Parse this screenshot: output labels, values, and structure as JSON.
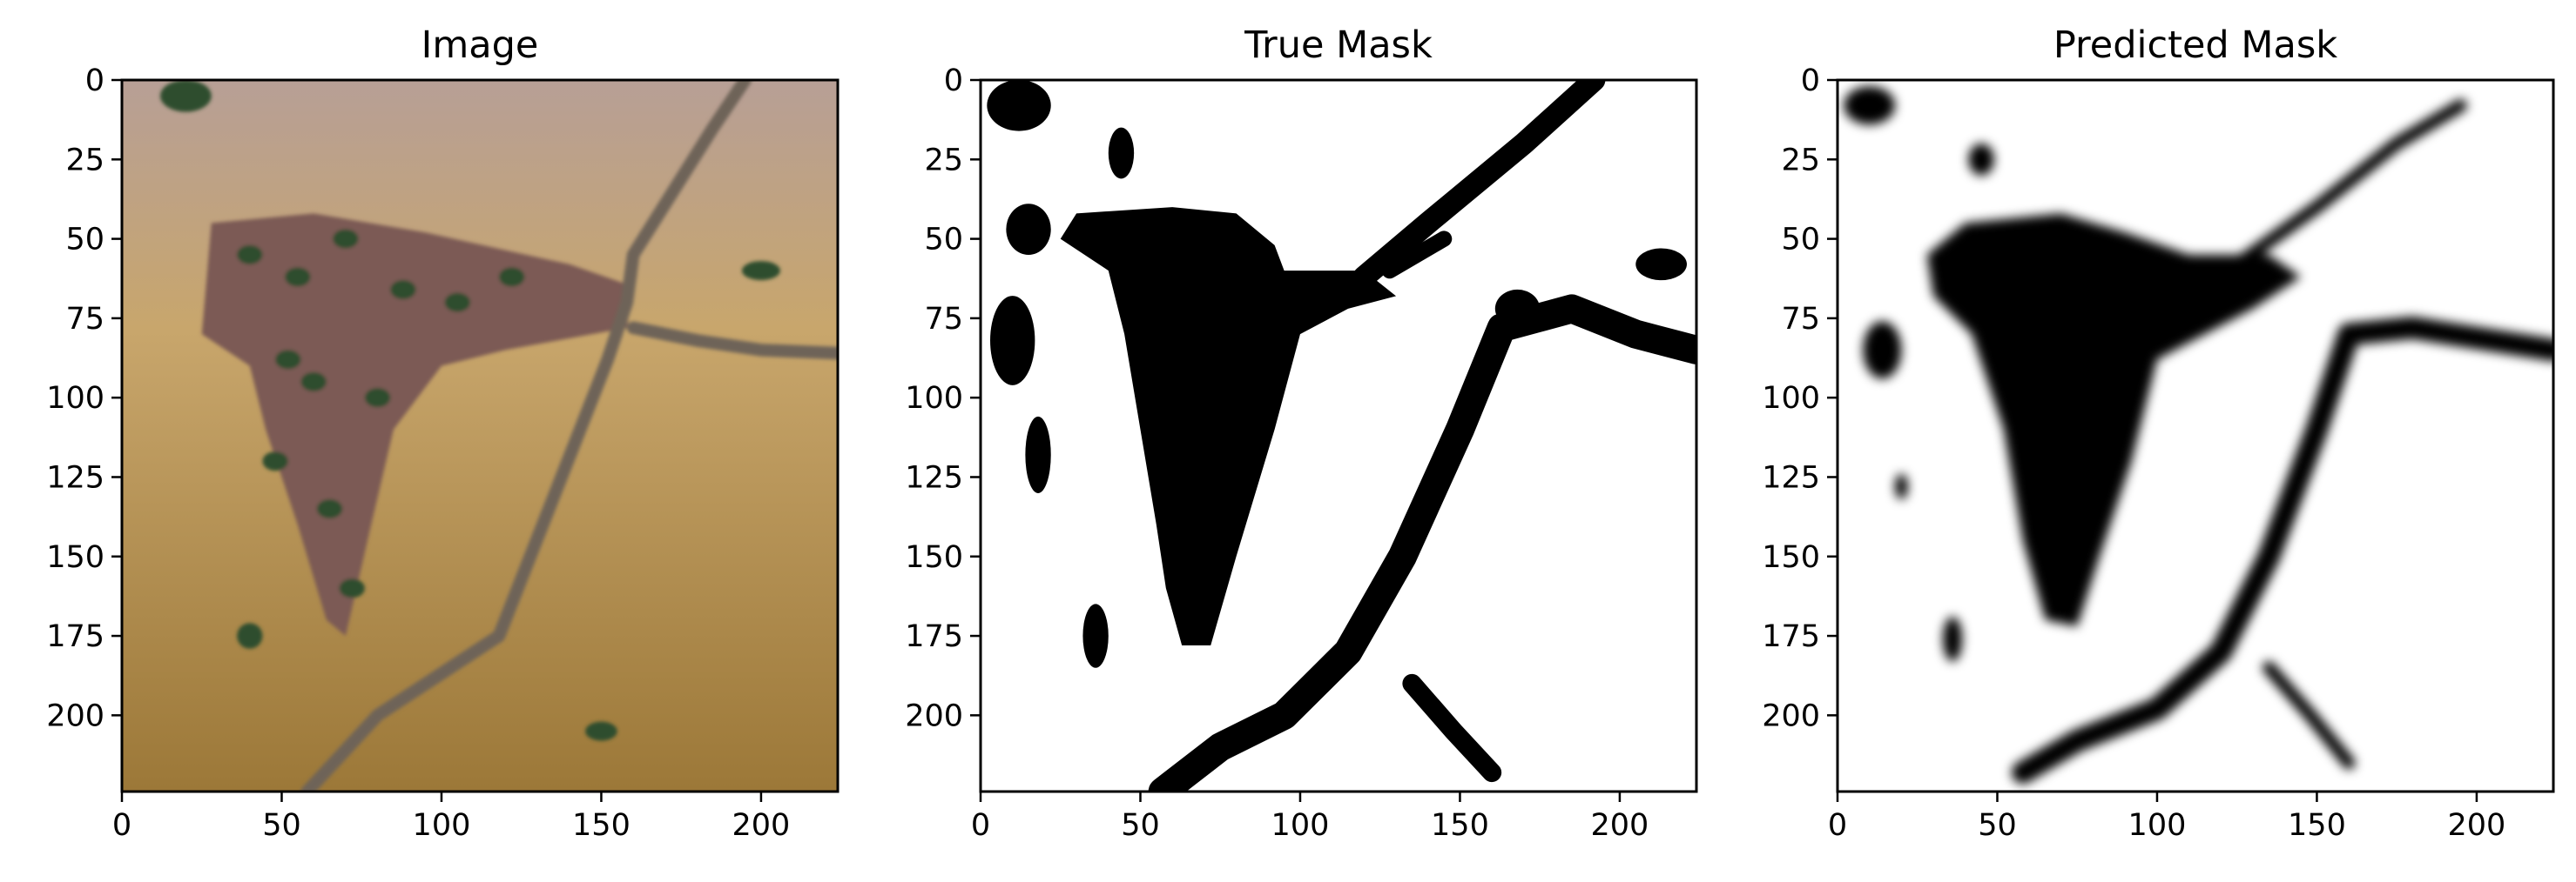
{
  "figure": {
    "background": "#ffffff"
  },
  "chart_data": [
    {
      "type": "image",
      "title": "Image",
      "xlabel": "",
      "ylabel": "",
      "xlim": [
        0,
        224
      ],
      "ylim": [
        224,
        0
      ],
      "x_ticks": [
        0,
        50,
        100,
        150,
        200
      ],
      "x_tick_labels": [
        "0",
        "50",
        "100",
        "150",
        "200"
      ],
      "y_ticks": [
        0,
        25,
        50,
        75,
        100,
        125,
        150,
        175,
        200
      ],
      "y_tick_labels": [
        "0",
        "25",
        "50",
        "75",
        "100",
        "125",
        "150",
        "175",
        "200"
      ],
      "colors": {
        "water": "#c8a66c",
        "water_top": "#b79f96",
        "town": "#7b5a55",
        "trees": "#2f4d2d",
        "road": "#6e6458"
      },
      "regions": [
        {
          "name": "town",
          "shape": "polygon",
          "points": [
            [
              28,
              45
            ],
            [
              60,
              42
            ],
            [
              95,
              48
            ],
            [
              140,
              58
            ],
            [
              160,
              65
            ],
            [
              158,
              78
            ],
            [
              120,
              85
            ],
            [
              100,
              90
            ],
            [
              85,
              110
            ],
            [
              78,
              140
            ],
            [
              70,
              175
            ],
            [
              64,
              170
            ],
            [
              55,
              140
            ],
            [
              45,
              110
            ],
            [
              40,
              90
            ],
            [
              25,
              80
            ]
          ]
        },
        {
          "name": "road",
          "shape": "polyline",
          "width": 4,
          "points": [
            [
              58,
              224
            ],
            [
              80,
              200
            ],
            [
              118,
              175
            ],
            [
              152,
              88
            ],
            [
              158,
              70
            ],
            [
              160,
              55
            ],
            [
              185,
              15
            ],
            [
              195,
              0
            ]
          ]
        },
        {
          "name": "road-east",
          "shape": "polyline",
          "width": 4,
          "points": [
            [
              160,
              78
            ],
            [
              180,
              82
            ],
            [
              200,
              85
            ],
            [
              224,
              86
            ]
          ]
        },
        {
          "name": "islet",
          "shape": "ellipse",
          "cx": 200,
          "cy": 60,
          "rx": 6,
          "ry": 3
        },
        {
          "name": "islet",
          "shape": "ellipse",
          "cx": 150,
          "cy": 205,
          "rx": 5,
          "ry": 3
        },
        {
          "name": "islet",
          "shape": "ellipse",
          "cx": 40,
          "cy": 175,
          "rx": 4,
          "ry": 4
        },
        {
          "name": "islet",
          "shape": "ellipse",
          "cx": 20,
          "cy": 5,
          "rx": 8,
          "ry": 5
        }
      ]
    },
    {
      "type": "image",
      "title": "True Mask",
      "xlabel": "",
      "ylabel": "",
      "xlim": [
        0,
        224
      ],
      "ylim": [
        224,
        0
      ],
      "x_ticks": [
        0,
        50,
        100,
        150,
        200
      ],
      "x_tick_labels": [
        "0",
        "50",
        "100",
        "150",
        "200"
      ],
      "y_ticks": [
        0,
        25,
        50,
        75,
        100,
        125,
        150,
        175,
        200
      ],
      "y_tick_labels": [
        "0",
        "25",
        "50",
        "75",
        "100",
        "125",
        "150",
        "175",
        "200"
      ],
      "colors": {
        "background": "#ffffff",
        "mask": "#000000"
      },
      "regions": [
        {
          "name": "town",
          "shape": "polygon",
          "points": [
            [
              25,
              50
            ],
            [
              30,
              42
            ],
            [
              60,
              40
            ],
            [
              80,
              42
            ],
            [
              92,
              52
            ],
            [
              95,
              60
            ],
            [
              120,
              60
            ],
            [
              130,
              68
            ],
            [
              115,
              72
            ],
            [
              100,
              80
            ],
            [
              92,
              110
            ],
            [
              80,
              150
            ],
            [
              72,
              178
            ],
            [
              63,
              178
            ],
            [
              58,
              160
            ],
            [
              55,
              140
            ],
            [
              50,
              110
            ],
            [
              45,
              80
            ],
            [
              40,
              60
            ]
          ]
        },
        {
          "name": "road",
          "shape": "polyline",
          "width": 9,
          "points": [
            [
              57,
              224
            ],
            [
              75,
              210
            ],
            [
              95,
              200
            ],
            [
              115,
              180
            ],
            [
              132,
              150
            ],
            [
              150,
              110
            ],
            [
              163,
              78
            ],
            [
              185,
              72
            ],
            [
              205,
              80
            ],
            [
              224,
              85
            ]
          ]
        },
        {
          "name": "road-north",
          "shape": "polyline",
          "width": 7,
          "points": [
            [
              120,
              62
            ],
            [
              140,
              45
            ],
            [
              170,
              20
            ],
            [
              192,
              0
            ]
          ]
        },
        {
          "name": "branch",
          "shape": "polyline",
          "width": 5,
          "points": [
            [
              128,
              60
            ],
            [
              145,
              50
            ]
          ]
        },
        {
          "name": "blob",
          "shape": "ellipse",
          "cx": 12,
          "cy": 8,
          "rx": 10,
          "ry": 8
        },
        {
          "name": "blob",
          "shape": "ellipse",
          "cx": 44,
          "cy": 23,
          "rx": 4,
          "ry": 8
        },
        {
          "name": "blob",
          "shape": "ellipse",
          "cx": 15,
          "cy": 47,
          "rx": 7,
          "ry": 8
        },
        {
          "name": "blob",
          "shape": "ellipse",
          "cx": 10,
          "cy": 82,
          "rx": 7,
          "ry": 14
        },
        {
          "name": "blob",
          "shape": "ellipse",
          "cx": 18,
          "cy": 118,
          "rx": 4,
          "ry": 12
        },
        {
          "name": "blob",
          "shape": "ellipse",
          "cx": 36,
          "cy": 175,
          "rx": 4,
          "ry": 10
        },
        {
          "name": "blob",
          "shape": "ellipse",
          "cx": 213,
          "cy": 58,
          "rx": 8,
          "ry": 5
        },
        {
          "name": "blob",
          "shape": "ellipse",
          "cx": 168,
          "cy": 72,
          "rx": 7,
          "ry": 6
        },
        {
          "name": "stripe",
          "shape": "polyline",
          "width": 6,
          "points": [
            [
              135,
              190
            ],
            [
              148,
              205
            ],
            [
              160,
              218
            ]
          ]
        }
      ]
    },
    {
      "type": "image",
      "title": "Predicted Mask",
      "xlabel": "",
      "ylabel": "",
      "xlim": [
        0,
        224
      ],
      "ylim": [
        224,
        0
      ],
      "x_ticks": [
        0,
        50,
        100,
        150,
        200
      ],
      "x_tick_labels": [
        "0",
        "50",
        "100",
        "150",
        "200"
      ],
      "y_ticks": [
        0,
        25,
        50,
        75,
        100,
        125,
        150,
        175,
        200
      ],
      "y_tick_labels": [
        "0",
        "25",
        "50",
        "75",
        "100",
        "125",
        "150",
        "175",
        "200"
      ],
      "colors": {
        "background": "#ffffff",
        "mask": "#000000"
      },
      "regions": [
        {
          "name": "town",
          "shape": "polygon",
          "points": [
            [
              28,
              55
            ],
            [
              40,
              45
            ],
            [
              70,
              42
            ],
            [
              90,
              48
            ],
            [
              110,
              55
            ],
            [
              135,
              55
            ],
            [
              145,
              62
            ],
            [
              130,
              72
            ],
            [
              115,
              80
            ],
            [
              100,
              88
            ],
            [
              92,
              120
            ],
            [
              82,
              150
            ],
            [
              75,
              172
            ],
            [
              65,
              170
            ],
            [
              58,
              145
            ],
            [
              52,
              110
            ],
            [
              42,
              80
            ],
            [
              30,
              68
            ]
          ]
        },
        {
          "name": "road",
          "shape": "polyline",
          "width": 7,
          "points": [
            [
              58,
              218
            ],
            [
              75,
              208
            ],
            [
              100,
              198
            ],
            [
              120,
              180
            ],
            [
              135,
              150
            ],
            [
              150,
              110
            ],
            [
              160,
              80
            ],
            [
              180,
              78
            ],
            [
              205,
              82
            ],
            [
              224,
              85
            ]
          ]
        },
        {
          "name": "road-north",
          "shape": "polyline",
          "width": 4,
          "points": [
            [
              125,
              58
            ],
            [
              150,
              40
            ],
            [
              175,
              20
            ],
            [
              195,
              8
            ]
          ]
        },
        {
          "name": "blob",
          "shape": "ellipse",
          "cx": 10,
          "cy": 8,
          "rx": 8,
          "ry": 6
        },
        {
          "name": "blob",
          "shape": "ellipse",
          "cx": 14,
          "cy": 85,
          "rx": 6,
          "ry": 9
        },
        {
          "name": "blob",
          "shape": "ellipse",
          "cx": 36,
          "cy": 176,
          "rx": 3,
          "ry": 7
        },
        {
          "name": "blob",
          "shape": "ellipse",
          "cx": 45,
          "cy": 25,
          "rx": 4,
          "ry": 5
        },
        {
          "name": "blob",
          "shape": "ellipse",
          "cx": 20,
          "cy": 128,
          "rx": 2,
          "ry": 4
        },
        {
          "name": "stripe",
          "shape": "polyline",
          "width": 4,
          "points": [
            [
              135,
              185
            ],
            [
              148,
              200
            ],
            [
              160,
              215
            ]
          ]
        }
      ]
    }
  ]
}
